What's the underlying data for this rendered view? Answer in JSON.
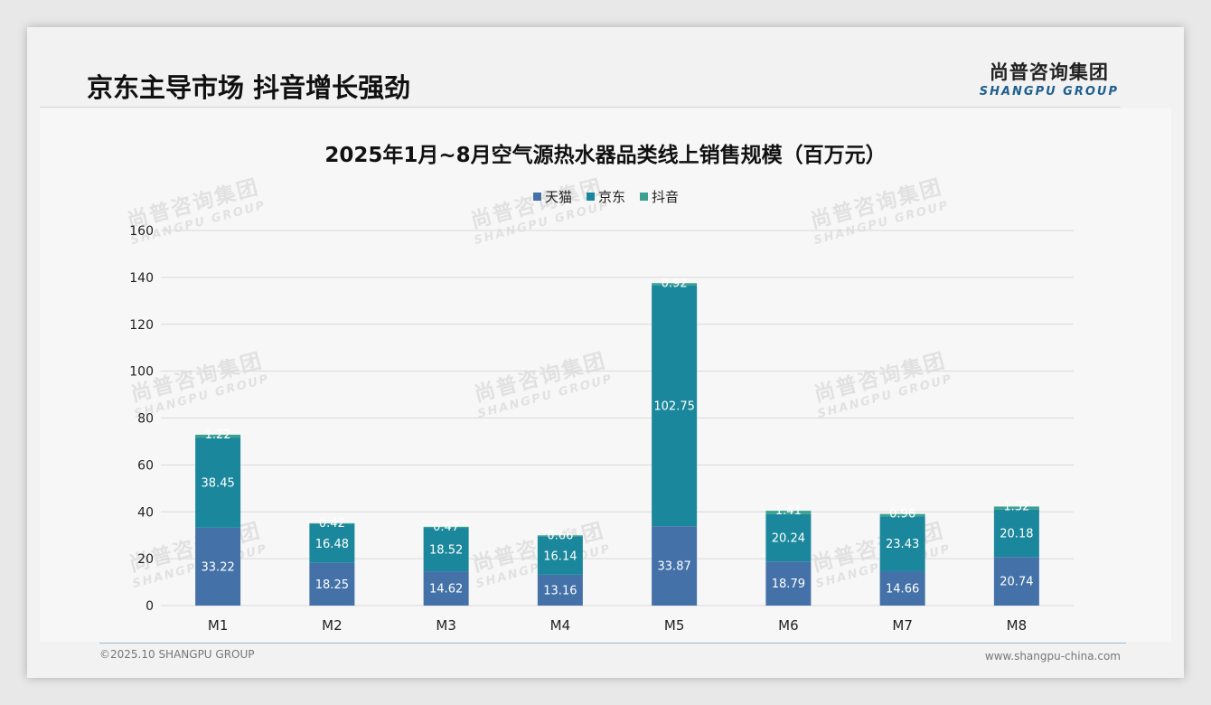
{
  "slide": {
    "title": "京东主导市场 抖音增长强劲",
    "logo_cn": "尚普咨询集团",
    "logo_en": "SHANGPU GROUP",
    "watermark_cn": "尚普咨询集团",
    "watermark_en": "SHANGPU GROUP",
    "footer_left": "©2025.10 SHANGPU GROUP",
    "footer_right": "www.shangpu-china.com"
  },
  "colors": {
    "tmall": "#4472a8",
    "jd": "#1b879c",
    "douyin": "#3aa090",
    "grid": "#d9d9d9",
    "axis_text": "#222222"
  },
  "chart_data": {
    "type": "bar",
    "stacked": true,
    "title": "2025年1月~8月空气源热水器品类线上销售规模（百万元）",
    "xlabel": "",
    "ylabel": "",
    "ylim": [
      0,
      160
    ],
    "yticks": [
      0,
      20,
      40,
      60,
      80,
      100,
      120,
      140,
      160
    ],
    "grid": true,
    "legend": "top-center",
    "categories": [
      "M1",
      "M2",
      "M3",
      "M4",
      "M5",
      "M6",
      "M7",
      "M8"
    ],
    "series": [
      {
        "name": "天猫",
        "color_key": "tmall",
        "values": [
          33.22,
          18.25,
          14.62,
          13.16,
          33.87,
          18.79,
          14.66,
          20.74
        ]
      },
      {
        "name": "京东",
        "color_key": "jd",
        "values": [
          38.45,
          16.48,
          18.52,
          16.14,
          102.75,
          20.24,
          23.43,
          20.18
        ]
      },
      {
        "name": "抖音",
        "color_key": "douyin",
        "values": [
          1.22,
          0.42,
          0.47,
          0.66,
          0.92,
          1.41,
          0.96,
          1.32
        ]
      }
    ]
  }
}
